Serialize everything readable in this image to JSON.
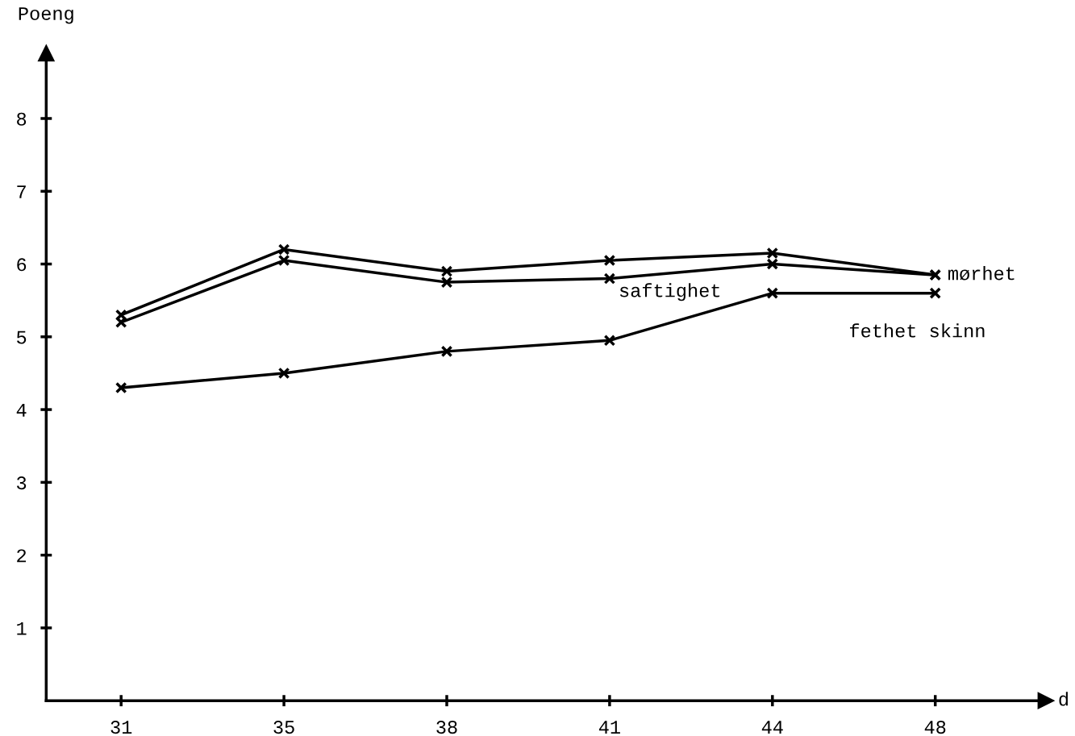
{
  "chart_data": {
    "type": "line",
    "xlabel": "d",
    "ylabel": "Poeng",
    "categories": [
      "31",
      "35",
      "38",
      "41",
      "44",
      "48"
    ],
    "series": [
      {
        "name": "mørhet",
        "color": "#000000",
        "values": [
          5.3,
          6.2,
          5.9,
          6.05,
          6.15,
          5.85
        ]
      },
      {
        "name": "saftighet",
        "color": "#000000",
        "values": [
          5.2,
          6.05,
          5.75,
          5.8,
          6.0,
          5.85
        ]
      },
      {
        "name": "fethet skinn",
        "color": "#000000",
        "values": [
          4.3,
          4.5,
          4.8,
          4.95,
          5.6,
          5.6
        ]
      }
    ],
    "ylim": [
      0,
      8.9
    ],
    "yticks": [
      1,
      2,
      3,
      4,
      5,
      6,
      7,
      8
    ],
    "grid": false,
    "legend": false,
    "marker": "cross",
    "line_style": "solid"
  }
}
